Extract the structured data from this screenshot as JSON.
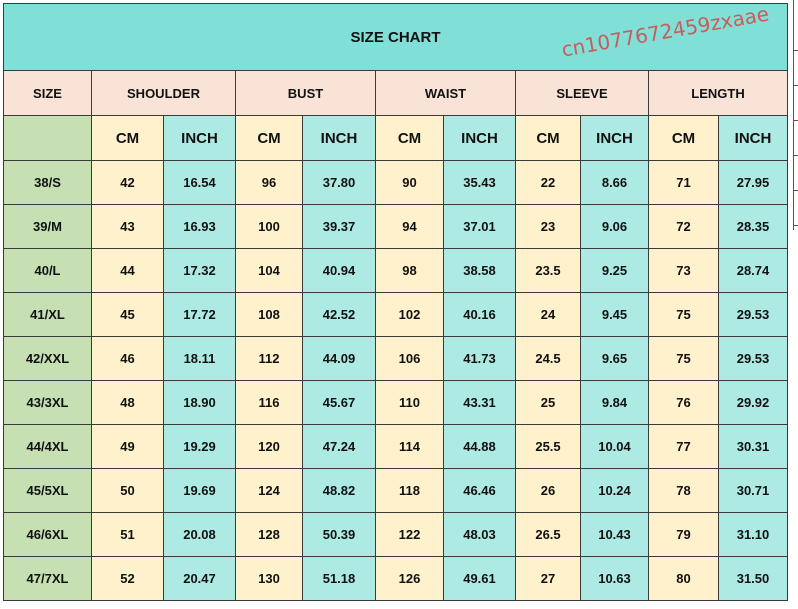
{
  "title": "SIZE CHART",
  "headers": {
    "size": "SIZE",
    "groups": [
      "SHOULDER",
      "BUST",
      "WAIST",
      "SLEEVE",
      "LENGTH"
    ],
    "cm": "CM",
    "inch": "INCH"
  },
  "rows": [
    {
      "size": "38/S",
      "values": [
        "42",
        "16.54",
        "96",
        "37.80",
        "90",
        "35.43",
        "22",
        "8.66",
        "71",
        "27.95"
      ]
    },
    {
      "size": "39/M",
      "values": [
        "43",
        "16.93",
        "100",
        "39.37",
        "94",
        "37.01",
        "23",
        "9.06",
        "72",
        "28.35"
      ]
    },
    {
      "size": "40/L",
      "values": [
        "44",
        "17.32",
        "104",
        "40.94",
        "98",
        "38.58",
        "23.5",
        "9.25",
        "73",
        "28.74"
      ]
    },
    {
      "size": "41/XL",
      "values": [
        "45",
        "17.72",
        "108",
        "42.52",
        "102",
        "40.16",
        "24",
        "9.45",
        "75",
        "29.53"
      ]
    },
    {
      "size": "42/XXL",
      "values": [
        "46",
        "18.11",
        "112",
        "44.09",
        "106",
        "41.73",
        "24.5",
        "9.65",
        "75",
        "29.53"
      ]
    },
    {
      "size": "43/3XL",
      "values": [
        "48",
        "18.90",
        "116",
        "45.67",
        "110",
        "43.31",
        "25",
        "9.84",
        "76",
        "29.92"
      ]
    },
    {
      "size": "44/4XL",
      "values": [
        "49",
        "19.29",
        "120",
        "47.24",
        "114",
        "44.88",
        "25.5",
        "10.04",
        "77",
        "30.31"
      ]
    },
    {
      "size": "45/5XL",
      "values": [
        "50",
        "19.69",
        "124",
        "48.82",
        "118",
        "46.46",
        "26",
        "10.24",
        "78",
        "30.71"
      ]
    },
    {
      "size": "46/6XL",
      "values": [
        "51",
        "20.08",
        "128",
        "50.39",
        "122",
        "48.03",
        "26.5",
        "10.43",
        "79",
        "31.10"
      ]
    },
    {
      "size": "47/7XL",
      "values": [
        "52",
        "20.47",
        "130",
        "51.18",
        "126",
        "49.61",
        "27",
        "10.63",
        "80",
        "31.50"
      ]
    }
  ],
  "watermark": "cn1077672459zxaae",
  "colors": {
    "title": "#80dfd6",
    "header": "#f8e3d6",
    "cm": "#fff1cc",
    "inch": "#aeeae4",
    "size": "#c6e0b4",
    "watermark": "#dc3c3c"
  }
}
